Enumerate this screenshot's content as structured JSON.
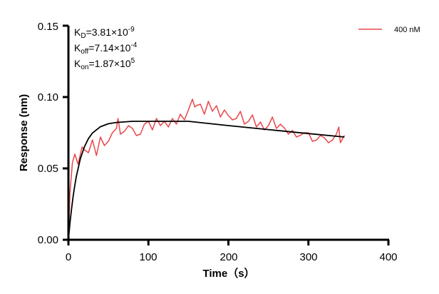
{
  "chart_data": {
    "type": "line",
    "xlabel": "Time（s）",
    "ylabel": "Response (nm)",
    "xlim": [
      0,
      400
    ],
    "ylim": [
      0,
      0.15
    ],
    "xticks": [
      "0",
      "100",
      "200",
      "300",
      "400"
    ],
    "yticks": [
      "0.00",
      "0.05",
      "0.10",
      "0.15"
    ],
    "grid": false,
    "legend_position": "top-right",
    "annotations": {
      "kd": {
        "label": "K",
        "sub": "D",
        "value": "=3.81×10",
        "exp": "-9"
      },
      "koff": {
        "label": "K",
        "sub": "off",
        "value": "=7.14×10",
        "exp": "-4"
      },
      "kon": {
        "label": "K",
        "sub": "on",
        "value": "=1.87×10",
        "exp": "5"
      }
    },
    "series": [
      {
        "name": "400 nM",
        "color": "#e8474b",
        "x": [
          0,
          2,
          5,
          8,
          12,
          17,
          20,
          25,
          30,
          35,
          40,
          45,
          50,
          55,
          60,
          62,
          65,
          70,
          75,
          80,
          85,
          90,
          95,
          100,
          105,
          110,
          115,
          120,
          125,
          130,
          135,
          140,
          145,
          150,
          155,
          158,
          160,
          165,
          170,
          175,
          180,
          185,
          190,
          195,
          200,
          205,
          210,
          215,
          220,
          225,
          230,
          235,
          240,
          245,
          250,
          255,
          260,
          265,
          270,
          275,
          280,
          285,
          290,
          295,
          300,
          305,
          310,
          315,
          320,
          325,
          330,
          335,
          338,
          340,
          345
        ],
        "y": [
          0,
          0.033,
          0.054,
          0.06,
          0.053,
          0.065,
          0.063,
          0.061,
          0.07,
          0.059,
          0.072,
          0.066,
          0.069,
          0.075,
          0.078,
          0.085,
          0.074,
          0.076,
          0.08,
          0.078,
          0.073,
          0.074,
          0.081,
          0.083,
          0.077,
          0.085,
          0.08,
          0.083,
          0.079,
          0.085,
          0.081,
          0.088,
          0.084,
          0.091,
          0.0985,
          0.093,
          0.094,
          0.095,
          0.088,
          0.097,
          0.09,
          0.094,
          0.086,
          0.091,
          0.087,
          0.084,
          0.085,
          0.09,
          0.081,
          0.083,
          0.0875,
          0.079,
          0.0825,
          0.077,
          0.08,
          0.086,
          0.078,
          0.081,
          0.0783,
          0.074,
          0.0766,
          0.072,
          0.0732,
          0.075,
          0.0749,
          0.069,
          0.0698,
          0.073,
          0.0715,
          0.068,
          0.0698,
          0.074,
          0.079,
          0.068,
          0.0732
        ]
      },
      {
        "name": "",
        "color": "#000000",
        "x": [
          0,
          2,
          4,
          6,
          8,
          10,
          15,
          20,
          25,
          30,
          40,
          50,
          60,
          80,
          100,
          150,
          175,
          200,
          250,
          300,
          345
        ],
        "y": [
          0,
          0.0119,
          0.022,
          0.0307,
          0.0382,
          0.0446,
          0.0569,
          0.0652,
          0.0709,
          0.0748,
          0.0792,
          0.0813,
          0.0822,
          0.083,
          0.083,
          0.083,
          0.0815,
          0.08,
          0.0772,
          0.0744,
          0.072
        ]
      }
    ]
  }
}
